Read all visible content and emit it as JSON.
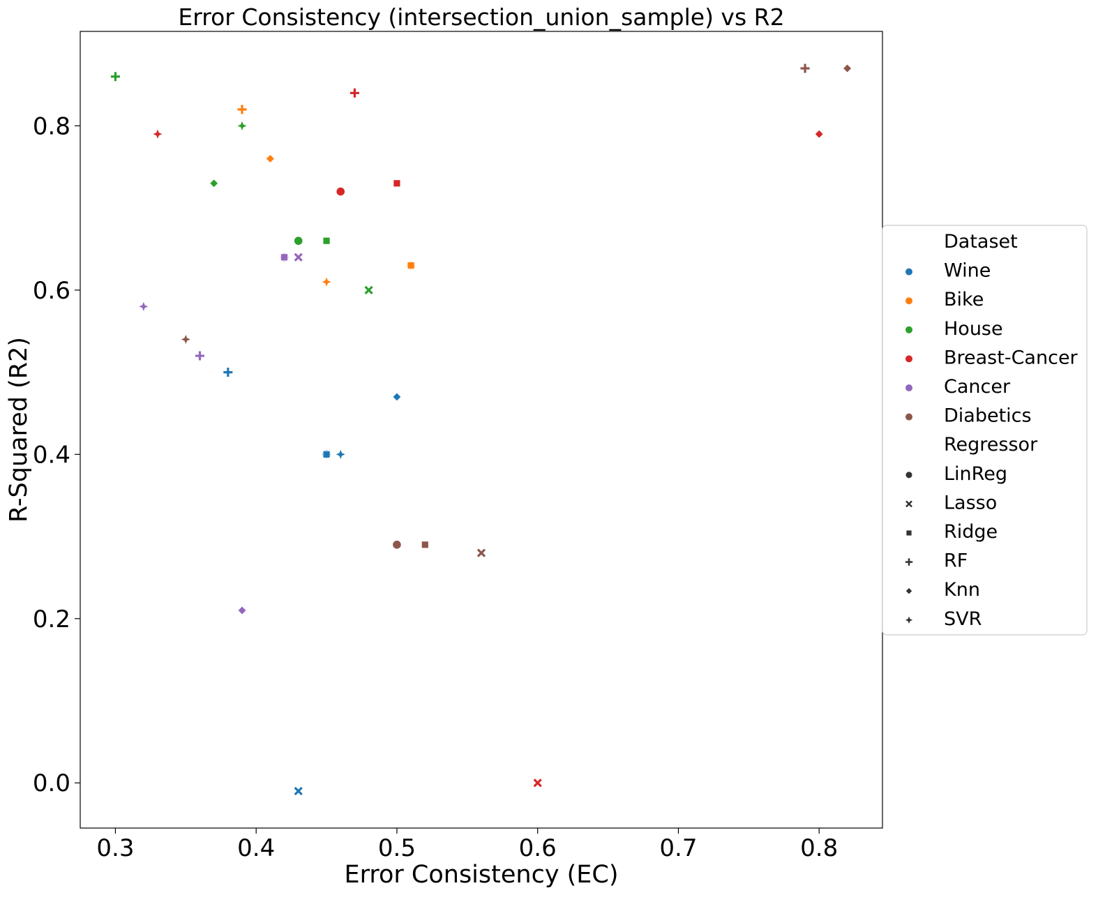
{
  "chart_data": {
    "type": "scatter",
    "title": "Error Consistency (intersection_union_sample) vs R2",
    "xlabel": "Error Consistency (EC)",
    "ylabel": "R-Squared (R2)",
    "xlim": [
      0.275,
      0.845
    ],
    "ylim": [
      -0.055,
      0.915
    ],
    "xticks": [
      "0.3",
      "0.4",
      "0.5",
      "0.6",
      "0.7",
      "0.8"
    ],
    "yticks": [
      "0.0",
      "0.2",
      "0.4",
      "0.6",
      "0.8"
    ],
    "grid": false,
    "legend_position": "right-center",
    "legend": {
      "hue_title": "Dataset",
      "style_title": "Regressor",
      "datasets": [
        {
          "name": "Wine",
          "color": "#1f77b4"
        },
        {
          "name": "Bike",
          "color": "#ff7f0e"
        },
        {
          "name": "House",
          "color": "#2ca02c"
        },
        {
          "name": "Breast-Cancer",
          "color": "#d62728"
        },
        {
          "name": "Cancer",
          "color": "#9467bd"
        },
        {
          "name": "Diabetics",
          "color": "#8c564b"
        }
      ],
      "regressors": [
        {
          "name": "LinReg",
          "marker": "circle"
        },
        {
          "name": "Lasso",
          "marker": "x"
        },
        {
          "name": "Ridge",
          "marker": "square"
        },
        {
          "name": "RF",
          "marker": "plus"
        },
        {
          "name": "Knn",
          "marker": "diamond"
        },
        {
          "name": "SVR",
          "marker": "star4"
        }
      ]
    },
    "points": [
      {
        "dataset": "Wine",
        "regressor": "LinReg",
        "x": 0.45,
        "y": 0.4
      },
      {
        "dataset": "Wine",
        "regressor": "Lasso",
        "x": 0.43,
        "y": -0.01
      },
      {
        "dataset": "Wine",
        "regressor": "Ridge",
        "x": 0.45,
        "y": 0.4
      },
      {
        "dataset": "Wine",
        "regressor": "RF",
        "x": 0.38,
        "y": 0.5
      },
      {
        "dataset": "Wine",
        "regressor": "Knn",
        "x": 0.5,
        "y": 0.47
      },
      {
        "dataset": "Wine",
        "regressor": "SVR",
        "x": 0.46,
        "y": 0.4
      },
      {
        "dataset": "Bike",
        "regressor": "LinReg",
        "x": 0.51,
        "y": 0.63
      },
      {
        "dataset": "Bike",
        "regressor": "Ridge",
        "x": 0.51,
        "y": 0.63
      },
      {
        "dataset": "Bike",
        "regressor": "RF",
        "x": 0.39,
        "y": 0.82
      },
      {
        "dataset": "Bike",
        "regressor": "Knn",
        "x": 0.41,
        "y": 0.76
      },
      {
        "dataset": "Bike",
        "regressor": "SVR",
        "x": 0.45,
        "y": 0.61
      },
      {
        "dataset": "House",
        "regressor": "LinReg",
        "x": 0.43,
        "y": 0.66
      },
      {
        "dataset": "House",
        "regressor": "Lasso",
        "x": 0.48,
        "y": 0.6
      },
      {
        "dataset": "House",
        "regressor": "Ridge",
        "x": 0.45,
        "y": 0.66
      },
      {
        "dataset": "House",
        "regressor": "RF",
        "x": 0.3,
        "y": 0.86
      },
      {
        "dataset": "House",
        "regressor": "Knn",
        "x": 0.37,
        "y": 0.73
      },
      {
        "dataset": "House",
        "regressor": "SVR",
        "x": 0.39,
        "y": 0.8
      },
      {
        "dataset": "Breast-Cancer",
        "regressor": "LinReg",
        "x": 0.46,
        "y": 0.72
      },
      {
        "dataset": "Breast-Cancer",
        "regressor": "Lasso",
        "x": 0.6,
        "y": 0.0
      },
      {
        "dataset": "Breast-Cancer",
        "regressor": "Ridge",
        "x": 0.5,
        "y": 0.73
      },
      {
        "dataset": "Breast-Cancer",
        "regressor": "RF",
        "x": 0.47,
        "y": 0.84
      },
      {
        "dataset": "Breast-Cancer",
        "regressor": "Knn",
        "x": 0.8,
        "y": 0.79
      },
      {
        "dataset": "Breast-Cancer",
        "regressor": "SVR",
        "x": 0.33,
        "y": 0.79
      },
      {
        "dataset": "Cancer",
        "regressor": "LinReg",
        "x": 0.42,
        "y": 0.64
      },
      {
        "dataset": "Cancer",
        "regressor": "Lasso",
        "x": 0.43,
        "y": 0.64
      },
      {
        "dataset": "Cancer",
        "regressor": "Ridge",
        "x": 0.42,
        "y": 0.64
      },
      {
        "dataset": "Cancer",
        "regressor": "RF",
        "x": 0.36,
        "y": 0.52
      },
      {
        "dataset": "Cancer",
        "regressor": "Knn",
        "x": 0.39,
        "y": 0.21
      },
      {
        "dataset": "Cancer",
        "regressor": "SVR",
        "x": 0.32,
        "y": 0.58
      },
      {
        "dataset": "Diabetics",
        "regressor": "LinReg",
        "x": 0.5,
        "y": 0.29
      },
      {
        "dataset": "Diabetics",
        "regressor": "Lasso",
        "x": 0.56,
        "y": 0.28
      },
      {
        "dataset": "Diabetics",
        "regressor": "Ridge",
        "x": 0.52,
        "y": 0.29
      },
      {
        "dataset": "Diabetics",
        "regressor": "RF",
        "x": 0.79,
        "y": 0.87
      },
      {
        "dataset": "Diabetics",
        "regressor": "Knn",
        "x": 0.82,
        "y": 0.87
      },
      {
        "dataset": "Diabetics",
        "regressor": "SVR",
        "x": 0.35,
        "y": 0.54
      }
    ]
  }
}
